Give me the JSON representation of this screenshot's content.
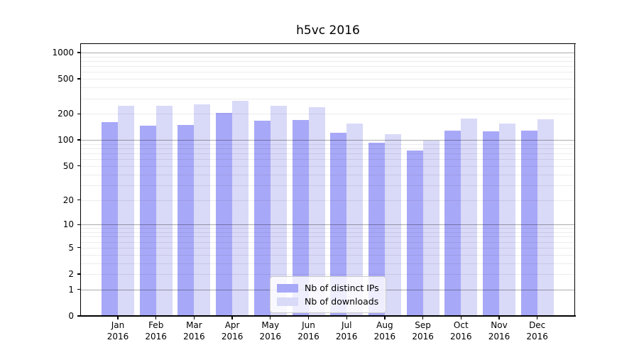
{
  "chart_data": {
    "type": "bar",
    "title": "h5vc 2016",
    "y_scale": "log10(value+1)",
    "ylim": [
      0,
      1255
    ],
    "grid": true,
    "legend_position": "lower-center",
    "x_ticks": [
      {
        "month": "Jan",
        "year": "2016"
      },
      {
        "month": "Feb",
        "year": "2016"
      },
      {
        "month": "Mar",
        "year": "2016"
      },
      {
        "month": "Apr",
        "year": "2016"
      },
      {
        "month": "May",
        "year": "2016"
      },
      {
        "month": "Jun",
        "year": "2016"
      },
      {
        "month": "Jul",
        "year": "2016"
      },
      {
        "month": "Aug",
        "year": "2016"
      },
      {
        "month": "Sep",
        "year": "2016"
      },
      {
        "month": "Oct",
        "year": "2016"
      },
      {
        "month": "Nov",
        "year": "2016"
      },
      {
        "month": "Dec",
        "year": "2016"
      }
    ],
    "y_ticks": [
      {
        "value": 1000,
        "label": "1000"
      },
      {
        "value": 500,
        "label": "500"
      },
      {
        "value": 200,
        "label": "200"
      },
      {
        "value": 100,
        "label": "100"
      },
      {
        "value": 50,
        "label": "50"
      },
      {
        "value": 20,
        "label": "20"
      },
      {
        "value": 10,
        "label": "10"
      },
      {
        "value": 5,
        "label": "5"
      },
      {
        "value": 2,
        "label": "2"
      },
      {
        "value": 1,
        "label": "1"
      },
      {
        "value": 0,
        "label": "0"
      }
    ],
    "minor_grid_values": [
      2,
      3,
      4,
      5,
      6,
      7,
      8,
      9,
      20,
      30,
      40,
      50,
      60,
      70,
      80,
      90,
      200,
      300,
      400,
      500,
      600,
      700,
      800,
      900
    ],
    "major_grid_values": [
      1,
      10,
      100,
      1000
    ],
    "series": [
      {
        "key": "ips",
        "name": "Nb of distinct IPs",
        "color": "#a8a8f8",
        "values": [
          160,
          145,
          148,
          203,
          168,
          170,
          122,
          93,
          76,
          128,
          125,
          128
        ]
      },
      {
        "key": "downloads",
        "name": "Nb of downloads",
        "color": "#d9d9f8",
        "values": [
          247,
          246,
          258,
          280,
          247,
          239,
          156,
          117,
          98,
          177,
          154,
          172
        ]
      }
    ],
    "colors": {
      "axis": "#000000",
      "grid_major": "#b0b0b0",
      "grid_minor": "#e8e8e8",
      "background": "#ffffff"
    }
  }
}
